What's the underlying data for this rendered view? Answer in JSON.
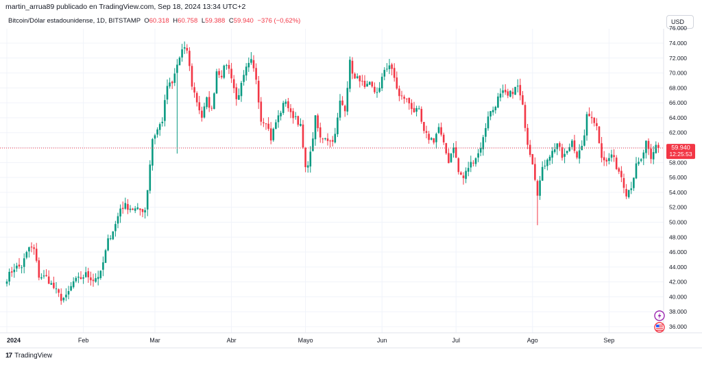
{
  "header": {
    "published": "martin_arrua89 publicado en TradingView.com, Sep 18, 2024 13:34 UTC+2"
  },
  "legend": {
    "symbol": "Bitcoin/Dólar estadounidense, 1D, BITSTAMP",
    "o_label": "O",
    "o_value": "60.318",
    "h_label": "H",
    "h_value": "60.758",
    "l_label": "L",
    "l_value": "59.388",
    "c_label": "C",
    "c_value": "59.940",
    "change": "−376 (−0,62%)"
  },
  "currency": "USD",
  "price_label": {
    "price": "59.940",
    "countdown": "12:25:53"
  },
  "footer": {
    "brand": "TradingView",
    "logo_mark": "17"
  },
  "colors": {
    "up": "#089981",
    "down": "#f23645",
    "grid": "#f0f3fa",
    "text": "#131722"
  },
  "icons": [
    "lightning-icon",
    "us-flag-icon"
  ],
  "chart_data": {
    "type": "candlestick",
    "title": "Bitcoin/Dólar estadounidense, 1D, BITSTAMP",
    "xlabel": "",
    "ylabel": "",
    "ylim": [
      34500,
      77000
    ],
    "grid": true,
    "y_ticks": [
      {
        "v": 36000,
        "label": "36.000"
      },
      {
        "v": 38000,
        "label": "38.000"
      },
      {
        "v": 40000,
        "label": "40.000"
      },
      {
        "v": 42000,
        "label": "42.000"
      },
      {
        "v": 44000,
        "label": "44.000"
      },
      {
        "v": 46000,
        "label": "46.000"
      },
      {
        "v": 48000,
        "label": "48.000"
      },
      {
        "v": 50000,
        "label": "50.000"
      },
      {
        "v": 52000,
        "label": "52.000"
      },
      {
        "v": 54000,
        "label": "54.000"
      },
      {
        "v": 56000,
        "label": "56.000"
      },
      {
        "v": 58000,
        "label": "58.000"
      },
      {
        "v": 60000,
        "label": "60.000"
      },
      {
        "v": 62000,
        "label": "62.000"
      },
      {
        "v": 64000,
        "label": "64.000"
      },
      {
        "v": 66000,
        "label": "66.000"
      },
      {
        "v": 68000,
        "label": "68.000"
      },
      {
        "v": 70000,
        "label": "70.000"
      },
      {
        "v": 72000,
        "label": "72.000"
      },
      {
        "v": 74000,
        "label": "74.000"
      },
      {
        "v": 76000,
        "label": "76.000"
      }
    ],
    "x_ticks": [
      {
        "label": "2024",
        "day": 0,
        "bold": true
      },
      {
        "label": "Feb",
        "day": 31
      },
      {
        "label": "Mar",
        "day": 60
      },
      {
        "label": "Abr",
        "day": 91
      },
      {
        "label": "Mayo",
        "day": 121
      },
      {
        "label": "Jun",
        "day": 152
      },
      {
        "label": "Jul",
        "day": 182
      },
      {
        "label": "Ago",
        "day": 213
      },
      {
        "label": "Sep",
        "day": 244
      }
    ],
    "last_price": 59940,
    "closes_anchor": [
      [
        0,
        42500
      ],
      [
        3,
        43900
      ],
      [
        6,
        44100
      ],
      [
        9,
        46600
      ],
      [
        11,
        46300
      ],
      [
        13,
        42800
      ],
      [
        16,
        42600
      ],
      [
        19,
        41200
      ],
      [
        22,
        39800
      ],
      [
        24,
        39900
      ],
      [
        27,
        42000
      ],
      [
        30,
        42500
      ],
      [
        32,
        43000
      ],
      [
        35,
        42300
      ],
      [
        38,
        43100
      ],
      [
        41,
        47500
      ],
      [
        44,
        49700
      ],
      [
        46,
        51900
      ],
      [
        48,
        52200
      ],
      [
        51,
        51800
      ],
      [
        53,
        51600
      ],
      [
        56,
        51700
      ],
      [
        57,
        54500
      ],
      [
        59,
        61200
      ],
      [
        61,
        62400
      ],
      [
        63,
        63700
      ],
      [
        65,
        68300
      ],
      [
        67,
        68500
      ],
      [
        69,
        71100
      ],
      [
        71,
        73000
      ],
      [
        73,
        73100
      ],
      [
        75,
        68400
      ],
      [
        77,
        66200
      ],
      [
        79,
        64100
      ],
      [
        81,
        66400
      ],
      [
        83,
        65000
      ],
      [
        85,
        70300
      ],
      [
        87,
        69800
      ],
      [
        89,
        71300
      ],
      [
        91,
        69600
      ],
      [
        93,
        66400
      ],
      [
        95,
        68300
      ],
      [
        97,
        70500
      ],
      [
        99,
        71500
      ],
      [
        101,
        69300
      ],
      [
        103,
        63700
      ],
      [
        105,
        63600
      ],
      [
        107,
        61200
      ],
      [
        109,
        63400
      ],
      [
        111,
        64900
      ],
      [
        113,
        66400
      ],
      [
        115,
        64400
      ],
      [
        117,
        64200
      ],
      [
        119,
        62800
      ],
      [
        121,
        57000
      ],
      [
        123,
        59100
      ],
      [
        125,
        63900
      ],
      [
        127,
        61200
      ],
      [
        129,
        61500
      ],
      [
        131,
        60800
      ],
      [
        133,
        61600
      ],
      [
        135,
        66100
      ],
      [
        137,
        65300
      ],
      [
        139,
        71400
      ],
      [
        141,
        69100
      ],
      [
        143,
        69300
      ],
      [
        145,
        67800
      ],
      [
        147,
        68400
      ],
      [
        149,
        67500
      ],
      [
        151,
        67800
      ],
      [
        153,
        70500
      ],
      [
        155,
        71100
      ],
      [
        157,
        69300
      ],
      [
        159,
        66800
      ],
      [
        161,
        66700
      ],
      [
        163,
        66000
      ],
      [
        165,
        64900
      ],
      [
        167,
        64800
      ],
      [
        169,
        61900
      ],
      [
        171,
        61300
      ],
      [
        173,
        61000
      ],
      [
        175,
        62700
      ],
      [
        177,
        60300
      ],
      [
        179,
        58200
      ],
      [
        181,
        60300
      ],
      [
        183,
        56700
      ],
      [
        185,
        55900
      ],
      [
        187,
        57400
      ],
      [
        189,
        58300
      ],
      [
        191,
        59200
      ],
      [
        193,
        61200
      ],
      [
        195,
        64400
      ],
      [
        197,
        65100
      ],
      [
        199,
        66600
      ],
      [
        201,
        67300
      ],
      [
        203,
        66800
      ],
      [
        205,
        67600
      ],
      [
        207,
        68200
      ],
      [
        209,
        65400
      ],
      [
        211,
        60700
      ],
      [
        213,
        58100
      ],
      [
        215,
        54000
      ],
      [
        217,
        57000
      ],
      [
        219,
        58700
      ],
      [
        221,
        59400
      ],
      [
        223,
        60600
      ],
      [
        225,
        58700
      ],
      [
        227,
        59300
      ],
      [
        229,
        61000
      ],
      [
        231,
        58900
      ],
      [
        233,
        59800
      ],
      [
        235,
        64100
      ],
      [
        237,
        64300
      ],
      [
        239,
        62800
      ],
      [
        241,
        59000
      ],
      [
        243,
        58000
      ],
      [
        245,
        59100
      ],
      [
        247,
        57500
      ],
      [
        249,
        56200
      ],
      [
        251,
        53900
      ],
      [
        253,
        54900
      ],
      [
        255,
        57500
      ],
      [
        257,
        58200
      ],
      [
        259,
        60600
      ],
      [
        261,
        58200
      ],
      [
        263,
        60300
      ],
      [
        264,
        59940
      ]
    ]
  }
}
